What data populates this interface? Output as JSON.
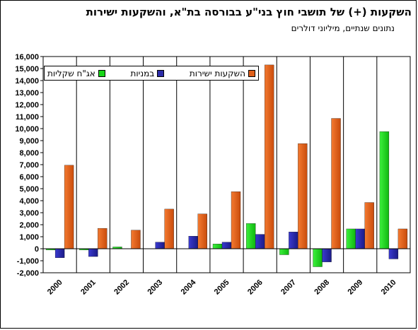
{
  "title": "השקעות (+) של תושבי חוץ בני\"ע בבורסה בת\"א, והשקעות ישירות",
  "subtitle": "נתונים שנתיים, מיליוני דולרים",
  "legend": {
    "direct": "השקעות ישירות",
    "stocks": "במניות",
    "bonds": "אג\"ח שקליות"
  },
  "colors": {
    "direct": "#e0601a",
    "stocks": "#2b2ba8",
    "bonds": "#19d619"
  },
  "chart_data": {
    "type": "bar",
    "categories": [
      "2000",
      "2001",
      "2002",
      "2003",
      "2004",
      "2005",
      "2006",
      "2007",
      "2008",
      "2009",
      "2010"
    ],
    "series": [
      {
        "name": "אג\"ח שקליות",
        "key": "bonds",
        "values": [
          -100,
          -100,
          150,
          0,
          0,
          400,
          2100,
          -500,
          -1500,
          1650,
          9750
        ]
      },
      {
        "name": "במניות",
        "key": "stocks",
        "values": [
          -750,
          -650,
          0,
          550,
          1050,
          550,
          1200,
          1400,
          -1100,
          1650,
          -850
        ]
      },
      {
        "name": "השקעות ישירות",
        "key": "direct",
        "values": [
          6950,
          1700,
          1550,
          3300,
          2900,
          4750,
          15300,
          8750,
          10850,
          3850,
          1650
        ]
      }
    ],
    "ylim": [
      -2000,
      16000
    ],
    "ytick_step": 1000,
    "ytick_labels": [
      "-2,000",
      "-1,000",
      "0",
      "1,000",
      "2,000",
      "3,000",
      "4,000",
      "5,000",
      "6,000",
      "7,000",
      "8,000",
      "9,000",
      "10,000",
      "11,000",
      "12,000",
      "13,000",
      "14,000",
      "15,000",
      "16,000"
    ],
    "grid": false,
    "legend_position": "top-left"
  }
}
